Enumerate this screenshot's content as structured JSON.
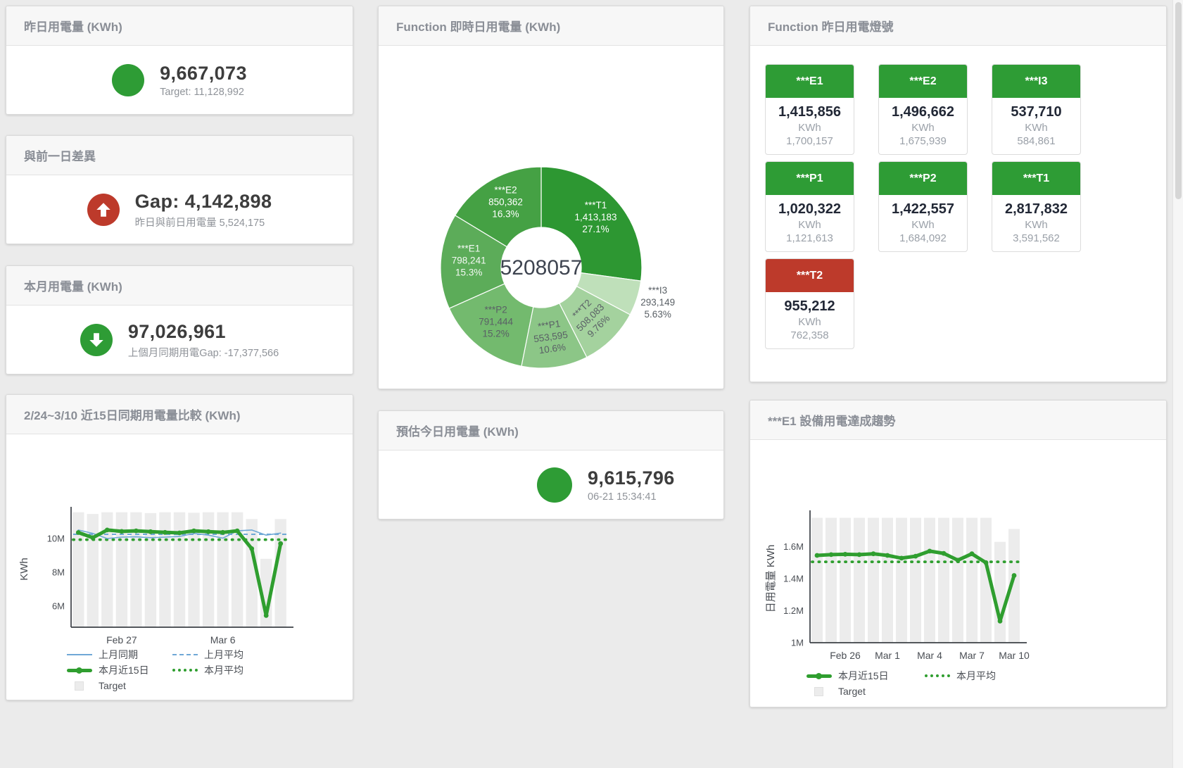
{
  "colors": {
    "green": "#2e9c35",
    "red": "#bd3a2b",
    "bar": "#ececec",
    "blue": "#6fa8d6",
    "axis_text": "#4a4e54"
  },
  "cards": {
    "yesterday": {
      "title": "昨日用電量 (KWh)",
      "value": "9,667,073",
      "sub": "Target: 11,128,992"
    },
    "gap": {
      "title": "與前一日差異",
      "value": "Gap: 4,142,898",
      "sub": "昨日與前日用電量 5,524,175"
    },
    "month": {
      "title": "本月用電量 (KWh)",
      "value": "97,026,961",
      "sub": "上個月同期用電Gap: -17,377,566"
    },
    "compare": {
      "title": "2/24~3/10 近15日同期用電量比較 (KWh)"
    },
    "donut": {
      "title": "Function 即時日用電量 (KWh)"
    },
    "forecast": {
      "title": "預估今日用電量 (KWh)",
      "value": "9,615,796",
      "sub": "06-21 15:34:41"
    },
    "lights": {
      "title": "Function 昨日用電燈號",
      "unit": "KWh",
      "tiles": [
        {
          "name": "***E1",
          "value": "1,415,856",
          "target": "1,700,157",
          "status": "green"
        },
        {
          "name": "***E2",
          "value": "1,496,662",
          "target": "1,675,939",
          "status": "green"
        },
        {
          "name": "***I3",
          "value": "537,710",
          "target": "584,861",
          "status": "green"
        },
        {
          "name": "***P1",
          "value": "1,020,322",
          "target": "1,121,613",
          "status": "green"
        },
        {
          "name": "***P2",
          "value": "1,422,557",
          "target": "1,684,092",
          "status": "green"
        },
        {
          "name": "***T1",
          "value": "2,817,832",
          "target": "3,591,562",
          "status": "green"
        },
        {
          "name": "***T2",
          "value": "955,212",
          "target": "762,358",
          "status": "red"
        }
      ]
    },
    "trend": {
      "title": "***E1 設備用電達成趨勢"
    }
  },
  "legend": {
    "lm_same": "上月同期",
    "lm_avg": "上月平均",
    "tm_15": "本月近15日",
    "tm_avg": "本月平均",
    "target": "Target"
  },
  "chart_data": [
    {
      "type": "pie",
      "title": "Function 即時日用電量 (KWh)",
      "center_total": "5208057",
      "unit": "KWh",
      "slices": [
        {
          "label": "***T1",
          "value": 1413183,
          "value_str": "1,413,183",
          "pct": "27.1%",
          "color": "#2d9732",
          "label_color": "#ffffff"
        },
        {
          "label": "***I3",
          "value": 293149,
          "value_str": "293,149",
          "pct": "5.63%",
          "color": "#bfe0ba",
          "label_color": "#5a6066",
          "outside": true
        },
        {
          "label": "***T2",
          "value": 508083,
          "value_str": "508,083",
          "pct": "9.76%",
          "color": "#a4d29e",
          "label_color": "#5a6066",
          "rotate": true
        },
        {
          "label": "***P1",
          "value": 553595,
          "value_str": "553,595",
          "pct": "10.6%",
          "color": "#8cc687",
          "label_color": "#5a6066",
          "rotate": true
        },
        {
          "label": "***P2",
          "value": 791444,
          "value_str": "791,444",
          "pct": "15.2%",
          "color": "#73ba6e",
          "label_color": "#5a6066"
        },
        {
          "label": "***E1",
          "value": 798241,
          "value_str": "798,241",
          "pct": "15.3%",
          "color": "#5cac59",
          "label_color": "#f4f9f4"
        },
        {
          "label": "***E2",
          "value": 850362,
          "value_str": "850,362",
          "pct": "16.3%",
          "color": "#45a144",
          "label_color": "#ffffff"
        }
      ]
    },
    {
      "type": "line",
      "title": "2/24~3/10 近15日同期用電量比較 (KWh)",
      "ylabel": "KWh",
      "unit": "M KWh",
      "x_dates": [
        "2/24",
        "2/25",
        "2/26",
        "2/27",
        "2/28",
        "3/1",
        "3/2",
        "3/3",
        "3/4",
        "3/5",
        "3/6",
        "3/7",
        "3/8",
        "3/9",
        "3/10"
      ],
      "xticks": [
        {
          "index": 3,
          "label": "Feb 27"
        },
        {
          "index": 10,
          "label": "Mar 6"
        }
      ],
      "yticks": [
        {
          "v": 6,
          "label": "6M"
        },
        {
          "v": 8,
          "label": "8M"
        },
        {
          "v": 10,
          "label": "10M"
        }
      ],
      "ylim": [
        4.76,
        11.62
      ],
      "grid": false,
      "legend_position": "bottom",
      "bar_color": "#ececec",
      "target_bars": [
        11.55,
        11.45,
        11.55,
        11.55,
        11.55,
        11.5,
        11.55,
        11.55,
        11.52,
        11.55,
        11.55,
        11.55,
        11.15,
        8.8,
        11.15
      ],
      "series": [
        {
          "name": "上月同期",
          "style": "thin",
          "color": "#6fa8d6",
          "values": [
            10.5,
            10.3,
            10.0,
            10.08,
            10.1,
            10.05,
            10.08,
            10.12,
            10.3,
            10.2,
            10.02,
            10.45,
            10.5,
            10.2,
            10.32
          ]
        },
        {
          "name": "上月平均",
          "style": "dashed",
          "color": "#6fa8d6",
          "avg": 10.25
        },
        {
          "name": "本月近15日",
          "style": "thick",
          "color": "#2f9e2f",
          "values": [
            10.35,
            10.05,
            10.5,
            10.42,
            10.45,
            10.4,
            10.36,
            10.33,
            10.45,
            10.4,
            10.36,
            10.45,
            9.4,
            5.45,
            9.7
          ]
        },
        {
          "name": "本月平均",
          "style": "dotted",
          "color": "#2f9e2f",
          "avg": 9.93
        }
      ],
      "legend_entries": [
        "上月同期",
        "上月平均",
        "本月近15日",
        "本月平均",
        "Target"
      ]
    },
    {
      "type": "line",
      "title": "***E1 設備用電達成趨勢",
      "ylabel": "日用電量 KWh",
      "unit": "M KWh",
      "x_dates": [
        "2/24",
        "2/25",
        "2/26",
        "2/27",
        "2/28",
        "3/1",
        "3/2",
        "3/3",
        "3/4",
        "3/5",
        "3/6",
        "3/7",
        "3/8",
        "3/9",
        "3/10"
      ],
      "xticks": [
        {
          "index": 2,
          "label": "Feb 26"
        },
        {
          "index": 5,
          "label": "Mar 1"
        },
        {
          "index": 8,
          "label": "Mar 4"
        },
        {
          "index": 11,
          "label": "Mar 7"
        },
        {
          "index": 14,
          "label": "Mar 10"
        }
      ],
      "yticks": [
        {
          "v": 1,
          "label": "1M"
        },
        {
          "v": 1.2,
          "label": "1.2M"
        },
        {
          "v": 1.4,
          "label": "1.4M"
        },
        {
          "v": 1.6,
          "label": "1.6M"
        }
      ],
      "ylim": [
        1,
        1.8
      ],
      "grid": false,
      "legend_position": "bottom",
      "bar_color": "#ececec",
      "target_bars": [
        1.78,
        1.78,
        1.78,
        1.78,
        1.78,
        1.78,
        1.78,
        1.78,
        1.78,
        1.78,
        1.78,
        1.78,
        1.78,
        1.63,
        1.71
      ],
      "series": [
        {
          "name": "本月近15日",
          "style": "thick",
          "color": "#2f9e2f",
          "values": [
            1.545,
            1.55,
            1.552,
            1.55,
            1.555,
            1.545,
            1.528,
            1.54,
            1.572,
            1.558,
            1.515,
            1.555,
            1.5,
            1.135,
            1.42
          ]
        },
        {
          "name": "本月平均",
          "style": "dotted",
          "color": "#2f9e2f",
          "avg": 1.505
        }
      ],
      "legend_entries": [
        "本月近15日",
        "本月平均",
        "Target"
      ]
    }
  ]
}
